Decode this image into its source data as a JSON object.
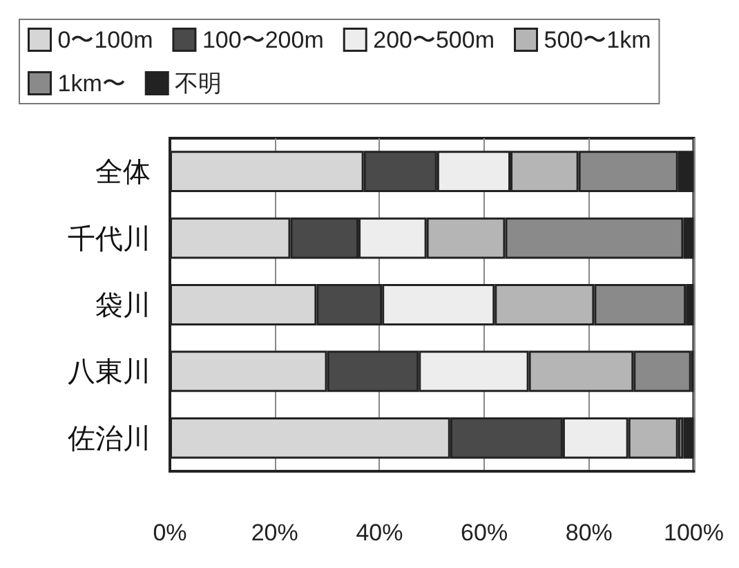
{
  "chart_data": {
    "type": "bar",
    "orientation": "horizontal",
    "stacked": true,
    "categories": [
      "全体",
      "千代川",
      "袋川",
      "八東川",
      "佐治川"
    ],
    "series": [
      {
        "name": "0〜100m",
        "color": "#d6d6d6",
        "values": [
          37,
          23,
          28,
          30,
          53.5
        ]
      },
      {
        "name": "100〜200m",
        "color": "#4a4a4a",
        "values": [
          14,
          13,
          12.5,
          17.5,
          21.5
        ]
      },
      {
        "name": "200〜500m",
        "color": "#ededed",
        "values": [
          14,
          13,
          21.5,
          21,
          12.5
        ]
      },
      {
        "name": "500〜1km",
        "color": "#b5b5b5",
        "values": [
          13,
          15,
          19,
          20,
          9.5
        ]
      },
      {
        "name": "1km〜",
        "color": "#8a8a8a",
        "values": [
          19,
          34,
          17.5,
          11,
          1
        ]
      },
      {
        "name": "不明",
        "color": "#222222",
        "values": [
          3,
          2,
          1.5,
          0.5,
          2
        ]
      }
    ],
    "xlim": [
      0,
      100
    ],
    "xticks": [
      {
        "value": 0,
        "label": "0%"
      },
      {
        "value": 20,
        "label": "20%"
      },
      {
        "value": 40,
        "label": "40%"
      },
      {
        "value": 60,
        "label": "60%"
      },
      {
        "value": 80,
        "label": "80%"
      },
      {
        "value": 100,
        "label": "100%"
      }
    ],
    "grid": "x",
    "legend": "top"
  }
}
